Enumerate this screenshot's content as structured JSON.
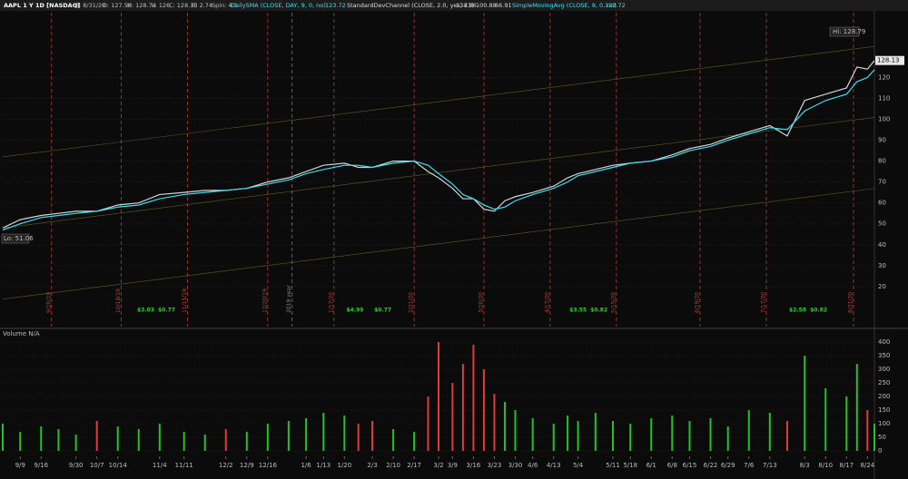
{
  "header": {
    "symbol": "AAPL 1 Y 1D [NASDAQ]",
    "fields": [
      "D: 8/31/20",
      "O: 127.58",
      "H: 128.74",
      "L: 126",
      "C: 128.13",
      "R: 2.74",
      "Spin: 4:1"
    ],
    "study1": "DailySMA (CLOSE, DAY, 9, 0, no)",
    "study2": "StandardDevChannel (CLOSE, 2.0, yes, 21)",
    "study3": "SimpleMovingAvg (CLOSE, 9, 0, no)"
  },
  "chart_data": [
    {
      "type": "line",
      "hi_label": "Hi: 128.79",
      "lo_label": "Lo: 51.06",
      "xlim": [
        0,
        250
      ],
      "ylim": [
        3,
        151
      ],
      "yticks": [
        20,
        30,
        40,
        50,
        60,
        70,
        80,
        90,
        100,
        110,
        120
      ],
      "x": [
        0,
        5,
        11,
        16,
        21,
        27,
        33,
        39,
        45,
        52,
        58,
        64,
        70,
        76,
        82,
        87,
        92,
        98,
        102,
        106,
        112,
        118,
        122,
        125,
        129,
        132,
        135,
        138,
        141,
        144,
        147,
        152,
        158,
        162,
        165,
        170,
        175,
        180,
        186,
        192,
        197,
        203,
        208,
        214,
        220,
        225,
        230,
        236,
        242,
        245,
        248,
        250
      ],
      "series": [
        {
          "name": "Close",
          "color": "#d4d4d4",
          "values": [
            48,
            52,
            54,
            55,
            56,
            56,
            59,
            60,
            64,
            65,
            66,
            66,
            67,
            70,
            72,
            75,
            78,
            79,
            77,
            77,
            80,
            80,
            75,
            72,
            67,
            62,
            62,
            57,
            56,
            61,
            63,
            65,
            68,
            72,
            74,
            76,
            78,
            79,
            80,
            83,
            86,
            88,
            91,
            94,
            97,
            92,
            109,
            112,
            115,
            125,
            124,
            128.13
          ]
        },
        {
          "name": "SimpleMovingAvg",
          "color": "#3fe0f0",
          "values": [
            47,
            50,
            53,
            54,
            55,
            56,
            58,
            59,
            62,
            64,
            65,
            66,
            67,
            69,
            71,
            74,
            76,
            78,
            78,
            77,
            79,
            80,
            78,
            74,
            69,
            64,
            62,
            59,
            57,
            58,
            61,
            64,
            67,
            70,
            73,
            75,
            77,
            79,
            80,
            82,
            85,
            87,
            90,
            93,
            96,
            95,
            104,
            109,
            112,
            118,
            120,
            123.72
          ]
        }
      ],
      "channel": {
        "x": [
          0,
          250
        ],
        "color": "#8a7a30",
        "upper": [
          82,
          134.86
        ],
        "middle": [
          48,
          100.88
        ],
        "lower": [
          14,
          66.91
        ]
      },
      "events": [
        {
          "x": 14,
          "label": "9/20/19"
        },
        {
          "x": 34,
          "label": "10/18/19"
        },
        {
          "x": 53,
          "label": "11/15/19"
        },
        {
          "x": 76,
          "label": "12/20/19"
        },
        {
          "x": 95,
          "label": "1/17/20"
        },
        {
          "x": 118,
          "label": "2/21/20"
        },
        {
          "x": 138,
          "label": "3/20/20"
        },
        {
          "x": 157,
          "label": "4/17/20"
        },
        {
          "x": 176,
          "label": "5/15/20"
        },
        {
          "x": 200,
          "label": "6/19/20"
        },
        {
          "x": 219,
          "label": "7/17/20"
        },
        {
          "x": 244,
          "label": "8/21/20"
        }
      ],
      "year_marker": {
        "x": 83,
        "label": "2019 year"
      },
      "dividends": [
        {
          "x": 41,
          "label": "$3.03"
        },
        {
          "x": 47,
          "label": "$0.77"
        },
        {
          "x": 101,
          "label": "$4.99"
        },
        {
          "x": 109,
          "label": "$0.77"
        },
        {
          "x": 165,
          "label": "$3.55"
        },
        {
          "x": 171,
          "label": "$0.82"
        },
        {
          "x": 228,
          "label": "$2.58"
        },
        {
          "x": 234,
          "label": "$0.82"
        }
      ]
    },
    {
      "type": "bar",
      "title": "Volume N/A",
      "xlim": [
        0,
        250
      ],
      "ylim": [
        0,
        417
      ],
      "yticks": [
        0,
        50,
        100,
        150,
        200,
        250,
        300,
        350,
        400
      ],
      "x": [
        0,
        5,
        11,
        16,
        21,
        27,
        33,
        39,
        45,
        52,
        58,
        64,
        70,
        76,
        82,
        87,
        92,
        98,
        102,
        106,
        112,
        118,
        122,
        125,
        129,
        132,
        135,
        138,
        141,
        144,
        147,
        152,
        158,
        162,
        165,
        170,
        175,
        180,
        186,
        192,
        197,
        203,
        208,
        214,
        220,
        225,
        230,
        236,
        242,
        245,
        248,
        250
      ],
      "values": [
        100,
        70,
        90,
        80,
        60,
        110,
        90,
        80,
        100,
        70,
        60,
        80,
        70,
        100,
        110,
        120,
        140,
        130,
        100,
        110,
        80,
        70,
        200,
        400,
        250,
        320,
        390,
        300,
        210,
        180,
        150,
        120,
        100,
        130,
        110,
        140,
        110,
        100,
        120,
        130,
        110,
        120,
        90,
        150,
        140,
        110,
        350,
        230,
        200,
        320,
        150,
        100
      ],
      "colors": [
        "#22c322",
        "#22c322",
        "#22c322",
        "#22c322",
        "#22c322",
        "#e03a3a",
        "#22c322",
        "#22c322",
        "#22c322",
        "#22c322",
        "#22c322",
        "#e03a3a",
        "#22c322",
        "#22c322",
        "#22c322",
        "#22c322",
        "#22c322",
        "#22c322",
        "#e03a3a",
        "#e03a3a",
        "#22c322",
        "#22c322",
        "#e03a3a",
        "#e03a3a",
        "#e03a3a",
        "#e03a3a",
        "#e03a3a",
        "#e03a3a",
        "#e03a3a",
        "#22c322",
        "#22c322",
        "#22c322",
        "#22c322",
        "#22c322",
        "#22c322",
        "#22c322",
        "#22c322",
        "#22c322",
        "#22c322",
        "#22c322",
        "#22c322",
        "#22c322",
        "#22c322",
        "#22c322",
        "#22c322",
        "#e03a3a",
        "#22c322",
        "#22c322",
        "#22c322",
        "#22c322",
        "#e03a3a",
        "#22c322"
      ],
      "xticks": [
        {
          "value": 5,
          "label": "9/9"
        },
        {
          "value": 11,
          "label": "9/16"
        },
        {
          "value": 21,
          "label": "9/30"
        },
        {
          "value": 27,
          "label": "10/7"
        },
        {
          "value": 33,
          "label": "10/14"
        },
        {
          "value": 45,
          "label": "11/4"
        },
        {
          "value": 52,
          "label": "11/11"
        },
        {
          "value": 64,
          "label": "12/2"
        },
        {
          "value": 70,
          "label": "12/9"
        },
        {
          "value": 76,
          "label": "12/16"
        },
        {
          "value": 87,
          "label": "1/6"
        },
        {
          "value": 92,
          "label": "1/13"
        },
        {
          "value": 98,
          "label": "1/20"
        },
        {
          "value": 106,
          "label": "2/3"
        },
        {
          "value": 112,
          "label": "2/10"
        },
        {
          "value": 118,
          "label": "2/17"
        },
        {
          "value": 125,
          "label": "3/2"
        },
        {
          "value": 129,
          "label": "3/9"
        },
        {
          "value": 135,
          "label": "3/16"
        },
        {
          "value": 141,
          "label": "3/23"
        },
        {
          "value": 147,
          "label": "3/30"
        },
        {
          "value": 152,
          "label": "4/6"
        },
        {
          "value": 158,
          "label": "4/13"
        },
        {
          "value": 165,
          "label": "5/4"
        },
        {
          "value": 175,
          "label": "5/11"
        },
        {
          "value": 180,
          "label": "5/18"
        },
        {
          "value": 186,
          "label": "6/1"
        },
        {
          "value": 192,
          "label": "6/8"
        },
        {
          "value": 197,
          "label": "6/15"
        },
        {
          "value": 203,
          "label": "6/22"
        },
        {
          "value": 208,
          "label": "6/29"
        },
        {
          "value": 214,
          "label": "7/6"
        },
        {
          "value": 220,
          "label": "7/13"
        },
        {
          "value": 230,
          "label": "8/3"
        },
        {
          "value": 236,
          "label": "8/10"
        },
        {
          "value": 242,
          "label": "8/17"
        },
        {
          "value": 248,
          "label": "8/24"
        }
      ]
    }
  ]
}
